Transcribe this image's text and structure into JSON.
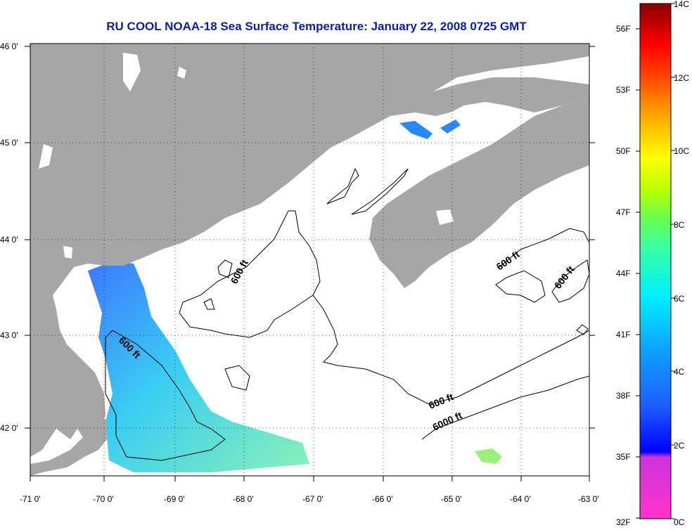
{
  "title": "RU COOL  NOAA-18  Sea Surface Temperature:  January 22, 2008 0725 GMT",
  "map": {
    "lon_ticks": [
      "-71 0'",
      "-70 0'",
      "-69 0'",
      "-68 0'",
      "-67 0'",
      "-66 0'",
      "-65 0'",
      "-64 0'",
      "-63 0'"
    ],
    "lat_ticks": [
      "46 0'",
      "45 0'",
      "44 0'",
      "43 0'",
      "42 0'"
    ],
    "contour_labels": [
      "600 ft",
      "600 ft",
      "600 ft",
      "600 ft",
      "600 ft",
      "6000 ft"
    ],
    "land_color": "#a6a6a6",
    "water_color": "#ffffff"
  },
  "colorbar": {
    "celsius_labels": [
      "14C",
      "12C",
      "10C",
      "8C",
      "6C",
      "4C",
      "2C",
      "0C"
    ],
    "fahrenheit_labels": [
      "56F",
      "53F",
      "50F",
      "47F",
      "44F",
      "41F",
      "38F",
      "35F",
      "32F"
    ]
  }
}
